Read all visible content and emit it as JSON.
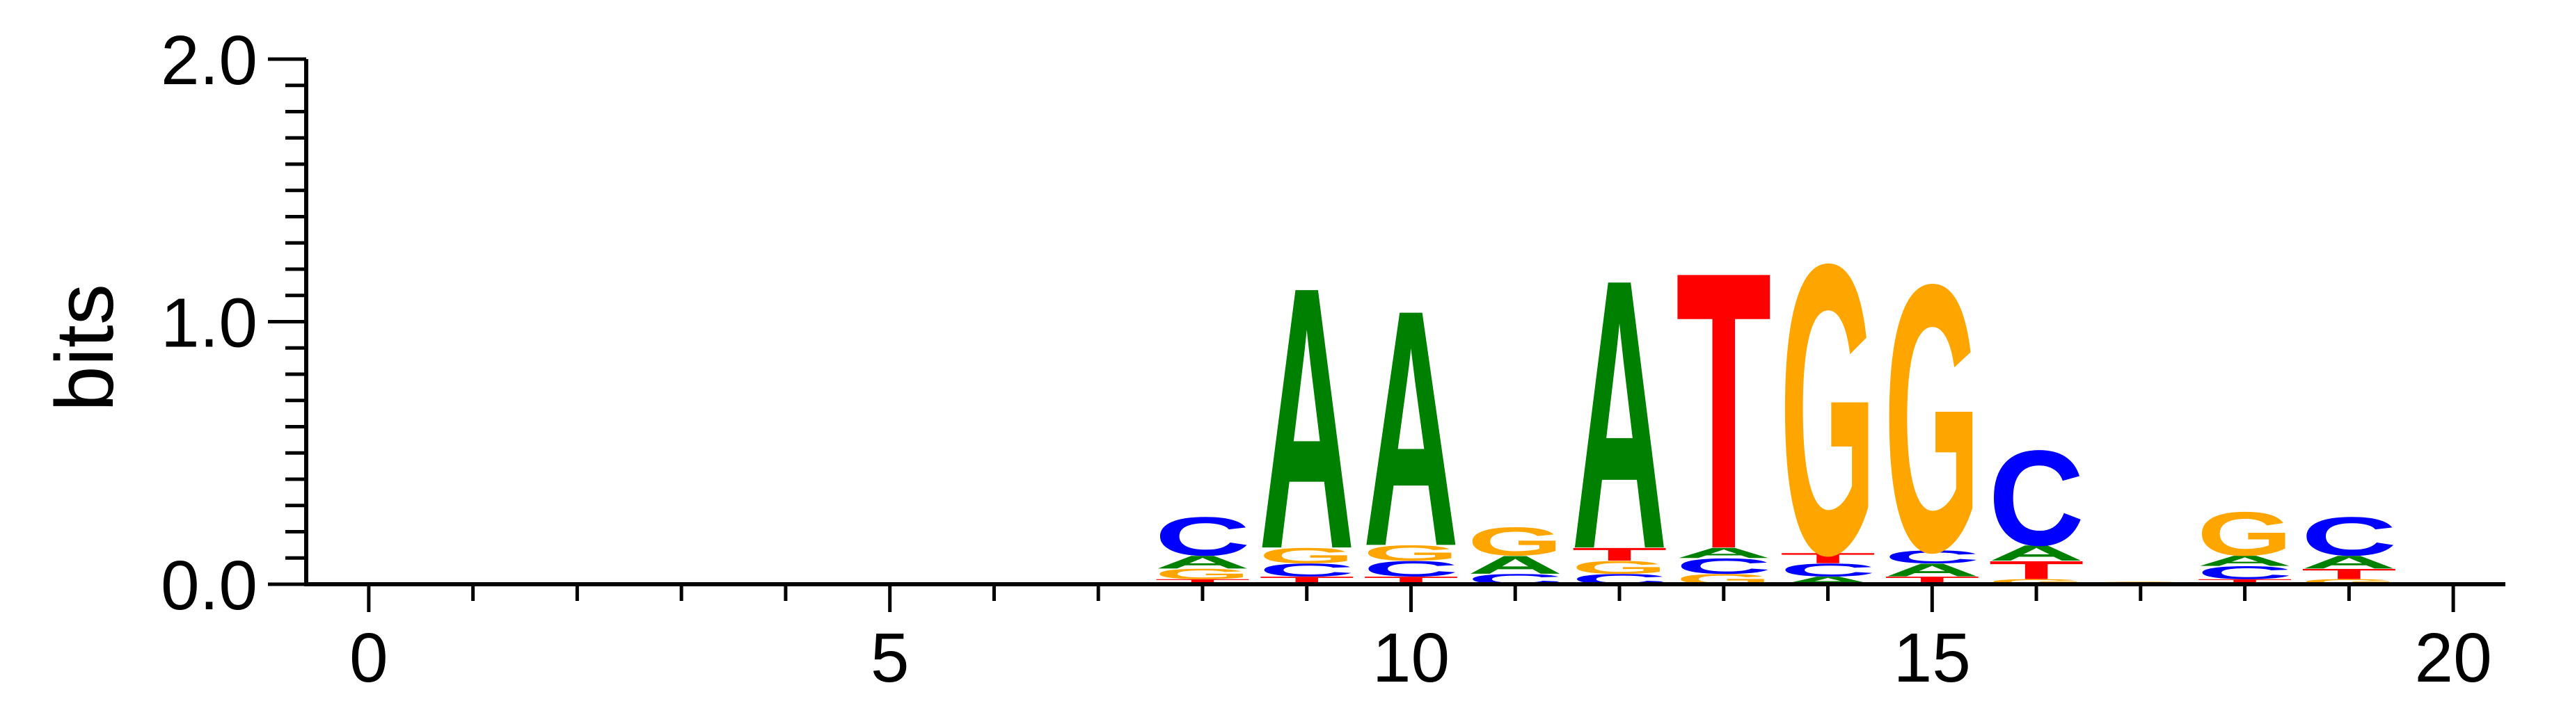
{
  "chart_data": {
    "type": "sequence-logo",
    "ylabel": "bits",
    "ylim": [
      0,
      2
    ],
    "xlim": [
      -0.6,
      20.5
    ],
    "y_ticks": [
      "0.0",
      "1.0",
      "2.0"
    ],
    "x_ticks": [
      "0",
      "5",
      "10",
      "15",
      "20"
    ],
    "colors": {
      "A": "#008000",
      "C": "#0000ff",
      "G": "#ffa500",
      "T": "#ff0000"
    },
    "positions": [
      {
        "pos": 8,
        "stack": [
          {
            "letter": "T",
            "bits": 0.02
          },
          {
            "letter": "G",
            "bits": 0.04
          },
          {
            "letter": "A",
            "bits": 0.05
          },
          {
            "letter": "C",
            "bits": 0.15
          }
        ]
      },
      {
        "pos": 9,
        "stack": [
          {
            "letter": "T",
            "bits": 0.03
          },
          {
            "letter": "C",
            "bits": 0.05
          },
          {
            "letter": "G",
            "bits": 0.06
          },
          {
            "letter": "A",
            "bits": 1.02
          }
        ]
      },
      {
        "pos": 10,
        "stack": [
          {
            "letter": "T",
            "bits": 0.03
          },
          {
            "letter": "C",
            "bits": 0.06
          },
          {
            "letter": "G",
            "bits": 0.06
          },
          {
            "letter": "A",
            "bits": 0.92
          }
        ]
      },
      {
        "pos": 11,
        "stack": [
          {
            "letter": "C",
            "bits": 0.04
          },
          {
            "letter": "A",
            "bits": 0.07
          },
          {
            "letter": "G",
            "bits": 0.11
          }
        ]
      },
      {
        "pos": 12,
        "stack": [
          {
            "letter": "C",
            "bits": 0.04
          },
          {
            "letter": "G",
            "bits": 0.05
          },
          {
            "letter": "T",
            "bits": 0.05
          },
          {
            "letter": "A",
            "bits": 1.05
          }
        ]
      },
      {
        "pos": 13,
        "stack": [
          {
            "letter": "G",
            "bits": 0.04
          },
          {
            "letter": "C",
            "bits": 0.06
          },
          {
            "letter": "A",
            "bits": 0.04
          },
          {
            "letter": "T",
            "bits": 1.08
          }
        ]
      },
      {
        "pos": 14,
        "stack": [
          {
            "letter": "A",
            "bits": 0.03
          },
          {
            "letter": "C",
            "bits": 0.05
          },
          {
            "letter": "T",
            "bits": 0.04
          },
          {
            "letter": "G",
            "bits": 1.13
          }
        ]
      },
      {
        "pos": 15,
        "stack": [
          {
            "letter": "T",
            "bits": 0.03
          },
          {
            "letter": "A",
            "bits": 0.05
          },
          {
            "letter": "C",
            "bits": 0.05
          },
          {
            "letter": "G",
            "bits": 1.04
          }
        ]
      },
      {
        "pos": 16,
        "stack": [
          {
            "letter": "G",
            "bits": 0.02
          },
          {
            "letter": "T",
            "bits": 0.07
          },
          {
            "letter": "A",
            "bits": 0.06
          },
          {
            "letter": "C",
            "bits": 0.37
          }
        ]
      },
      {
        "pos": 17,
        "stack": [
          {
            "letter": "G",
            "bits": 0.01
          }
        ]
      },
      {
        "pos": 18,
        "stack": [
          {
            "letter": "T",
            "bits": 0.02
          },
          {
            "letter": "C",
            "bits": 0.05
          },
          {
            "letter": "A",
            "bits": 0.04
          },
          {
            "letter": "G",
            "bits": 0.17
          }
        ]
      },
      {
        "pos": 19,
        "stack": [
          {
            "letter": "G",
            "bits": 0.02
          },
          {
            "letter": "T",
            "bits": 0.04
          },
          {
            "letter": "A",
            "bits": 0.05
          },
          {
            "letter": "C",
            "bits": 0.15
          }
        ]
      }
    ]
  }
}
